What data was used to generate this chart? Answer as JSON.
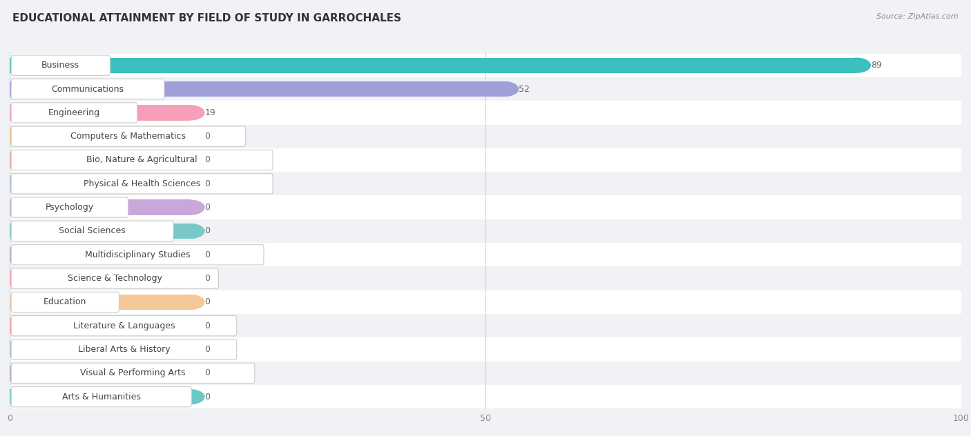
{
  "title": "EDUCATIONAL ATTAINMENT BY FIELD OF STUDY IN GARROCHALES",
  "source": "Source: ZipAtlas.com",
  "categories": [
    "Business",
    "Communications",
    "Engineering",
    "Computers & Mathematics",
    "Bio, Nature & Agricultural",
    "Physical & Health Sciences",
    "Psychology",
    "Social Sciences",
    "Multidisciplinary Studies",
    "Science & Technology",
    "Education",
    "Literature & Languages",
    "Liberal Arts & History",
    "Visual & Performing Arts",
    "Arts & Humanities"
  ],
  "values": [
    89,
    52,
    19,
    0,
    0,
    0,
    0,
    0,
    0,
    0,
    0,
    0,
    0,
    0,
    0
  ],
  "bar_colors": [
    "#3bbfbf",
    "#a0a0d8",
    "#f5a0b8",
    "#f5c080",
    "#f5a898",
    "#a8c0e0",
    "#c8a8d8",
    "#78c8c8",
    "#a8a8d8",
    "#f898b0",
    "#f5c898",
    "#f89898",
    "#98b8e0",
    "#b8a0d0",
    "#6acaca"
  ],
  "bar_light_colors": [
    "#3bbfbf",
    "#a0a0d8",
    "#f5a0b8",
    "#f5c080",
    "#f5a898",
    "#a8c0e0",
    "#c8a8d8",
    "#78c8c8",
    "#a8a8d8",
    "#f898b0",
    "#f5c898",
    "#f89898",
    "#98b8e0",
    "#b8a0d0",
    "#6acaca"
  ],
  "xlim": [
    0,
    100
  ],
  "xticks": [
    0,
    50,
    100
  ],
  "row_colors": [
    "#ffffff",
    "#f0f2f5"
  ],
  "background_color": "#f0f2f5",
  "title_fontsize": 11,
  "source_fontsize": 8,
  "label_fontsize": 9,
  "value_fontsize": 9
}
